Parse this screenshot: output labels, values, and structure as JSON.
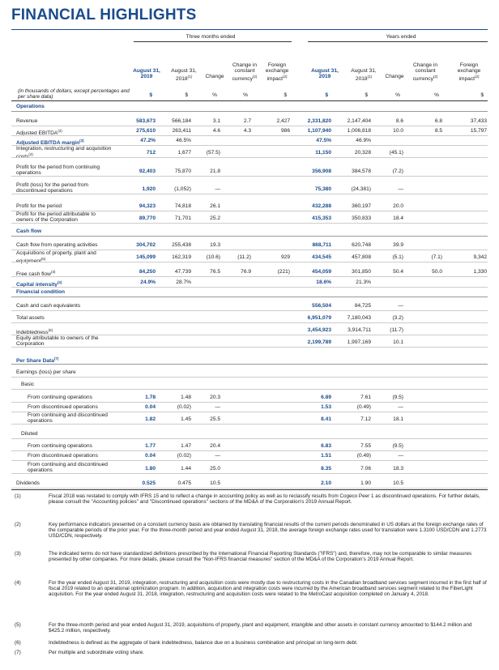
{
  "title": "FINANCIAL HIGHLIGHTS",
  "header": {
    "three_months": "Three months ended",
    "years": "Years ended",
    "col_aug2019": "August 31, 2019",
    "col_aug2018": "August 31, 2018",
    "sup1": "(1)",
    "change": "Change",
    "change_const": "Change in constant currency",
    "sup2": "(2)",
    "fx_impact": "Foreign exchange impact",
    "dollar": "$",
    "pct": "%",
    "units_note": "(in thousands of dollars, except percentages and per share data)"
  },
  "sections": {
    "operations": "Operations",
    "cash_flow": "Cash flow",
    "financial_condition": "Financial condition",
    "per_share": "Per Share Data",
    "per_share_sup": "(7)"
  },
  "rows": [
    {
      "label": "Revenue",
      "v": [
        "583,673",
        "566,184",
        "3.1",
        "2.7",
        "2,427",
        "2,331,820",
        "2,147,404",
        "8.6",
        "6.8",
        "37,433"
      ]
    },
    {
      "label": "Adjusted EBITDA",
      "sup": "(3)",
      "v": [
        "275,610",
        "263,411",
        "4.6",
        "4.3",
        "986",
        "1,107,940",
        "1,006,818",
        "10.0",
        "8.5",
        "15,797"
      ]
    },
    {
      "label": "Adjusted EBITDA margin",
      "sup": "(3)",
      "v": [
        "47.2%",
        "46.5%",
        "",
        "",
        "",
        "47.5%",
        "46.9%",
        "",
        "",
        ""
      ]
    },
    {
      "label": "Integration, restructuring and acquisition costs",
      "sup": "(4)",
      "v": [
        "712",
        "1,677",
        "(57.5)",
        "",
        "",
        "11,150",
        "20,328",
        "(45.1)",
        "",
        ""
      ]
    },
    {
      "label": "Profit for the period from continuing operations",
      "v": [
        "92,403",
        "75,870",
        "21.8",
        "",
        "",
        "356,908",
        "384,578",
        "(7.2)",
        "",
        ""
      ]
    },
    {
      "label": "Profit (loss) for the period from discontinued operations",
      "v": [
        "1,920",
        "(1,052)",
        "—",
        "",
        "",
        "75,380",
        "(24,381)",
        "—",
        "",
        ""
      ]
    },
    {
      "label": "Profit for the period",
      "v": [
        "94,323",
        "74,818",
        "26.1",
        "",
        "",
        "432,288",
        "360,197",
        "20.0",
        "",
        ""
      ]
    },
    {
      "label": "Profit for the period attributable to owners of the Corporation",
      "v": [
        "89,770",
        "71,701",
        "25.2",
        "",
        "",
        "415,353",
        "350,833",
        "18.4",
        "",
        ""
      ]
    },
    {
      "label": "Cash flow from operating activities",
      "v": [
        "304,702",
        "255,438",
        "19.3",
        "",
        "",
        "868,711",
        "620,748",
        "39.9",
        "",
        ""
      ]
    },
    {
      "label": "Acquisitions of property, plant and equipment",
      "sup": "(5)",
      "v": [
        "145,099",
        "162,319",
        "(10.6)",
        "(11.2)",
        "929",
        "434,545",
        "457,808",
        "(5.1)",
        "(7.1)",
        "9,342"
      ]
    },
    {
      "label": "Free cash flow",
      "sup": "(3)",
      "v": [
        "84,250",
        "47,739",
        "76.5",
        "76.9",
        "(221)",
        "454,059",
        "301,850",
        "50.4",
        "50.0",
        "1,330"
      ]
    },
    {
      "label": "Capital intensity",
      "sup": "(3)",
      "v": [
        "24.9%",
        "28.7%",
        "",
        "",
        "",
        "18.6%",
        "21.3%",
        "",
        "",
        ""
      ]
    },
    {
      "label": "Cash and cash equivalents",
      "v": [
        "",
        "",
        "",
        "",
        "",
        "556,504",
        "84,725",
        "—",
        "",
        ""
      ]
    },
    {
      "label": "Total assets",
      "v": [
        "",
        "",
        "",
        "",
        "",
        "6,951,079",
        "7,180,043",
        "(3.2)",
        "",
        ""
      ]
    },
    {
      "label": "Indebtedness",
      "sup": "(6)",
      "v": [
        "",
        "",
        "",
        "",
        "",
        "3,454,923",
        "3,914,711",
        "(11.7)",
        "",
        ""
      ]
    },
    {
      "label": "Equity attributable to owners of the Corporation",
      "v": [
        "",
        "",
        "",
        "",
        "",
        "2,199,789",
        "1,997,169",
        "10.1",
        "",
        ""
      ]
    },
    {
      "label": "Earnings (loss) per share",
      "v": [
        "",
        "",
        "",
        "",
        "",
        "",
        "",
        "",
        "",
        ""
      ]
    },
    {
      "label": "Basic",
      "v": [
        "",
        "",
        "",
        "",
        "",
        "",
        "",
        "",
        "",
        ""
      ]
    },
    {
      "label": "From continuing operations",
      "v": [
        "1.78",
        "1.48",
        "20.3",
        "",
        "",
        "6.89",
        "7.61",
        "(9.5)",
        "",
        ""
      ]
    },
    {
      "label": "From discontinued operations",
      "v": [
        "0.04",
        "(0.02)",
        "—",
        "",
        "",
        "1.53",
        "(0.49)",
        "—",
        "",
        ""
      ]
    },
    {
      "label": "From continuing and discontinued operations",
      "v": [
        "1.82",
        "1.45",
        "25.5",
        "",
        "",
        "8.41",
        "7.12",
        "18.1",
        "",
        ""
      ]
    },
    {
      "label": "Diluted",
      "v": [
        "",
        "",
        "",
        "",
        "",
        "",
        "",
        "",
        "",
        ""
      ]
    },
    {
      "label": "From continuing operations",
      "v": [
        "1.77",
        "1.47",
        "20.4",
        "",
        "",
        "6.83",
        "7.55",
        "(9.5)",
        "",
        ""
      ]
    },
    {
      "label": "From discontinued operations",
      "v": [
        "0.04",
        "(0.02)",
        "—",
        "",
        "",
        "1.51",
        "(0.49)",
        "—",
        "",
        ""
      ]
    },
    {
      "label": "From continuing and discontinued operations",
      "v": [
        "1.80",
        "1.44",
        "25.0",
        "",
        "",
        "8.35",
        "7.06",
        "18.3",
        "",
        ""
      ]
    },
    {
      "label": "Dividends",
      "v": [
        "0.525",
        "0.475",
        "10.5",
        "",
        "",
        "2.10",
        "1.90",
        "10.5",
        "",
        ""
      ]
    }
  ],
  "footnotes": [
    {
      "n": "(1)",
      "t": "Fiscal 2018 was restated to comply with IFRS 15 and to reflect a change in accounting policy as well as to reclassify results from Cogeco Peer 1 as discontinued operations. For further details, please consult the \"Accounting policies\" and \"Discontinued operations\" sections of the MD&A of the Corporation's 2019 Annual Report."
    },
    {
      "n": "(2)",
      "t": "Key performance indicators presented on a constant currency basis are obtained by translating financial results of the current periods denominated in US dollars at the foreign exchange rates of the comparable periods of the prior year. For the three-month period and year ended August 31, 2018, the average foreign exchange rates used for translation were 1.3100 USD/CDN and 1.2773 USD/CDN, respectively."
    },
    {
      "n": "(3)",
      "t": "The indicated terms do not have standardized definitions prescribed by the International Financial Reporting Standards (\"IFRS\") and, therefore, may not be comparable to similar measures presented by other companies. For more details, please consult the \"Non-IFRS financial measures\" section of the MD&A of the Corporation's 2019 Annual Report."
    },
    {
      "n": "(4)",
      "t": "For the year ended August 31, 2019, integration, restructuring and acquisition costs were mostly due to restructuring costs in the Canadian broadband services segment incurred in the first half of fiscal 2019 related to an operational optimization program. In addition, acquisition and integration costs were incurred by the American broadband services segment related to the FiberLight acquisition. For the year ended August 31, 2018, integration, restructuring and acquisition costs were related to the MetroCast acquisition completed on January 4, 2018."
    },
    {
      "n": "(5)",
      "t": "For the three-month period and year ended August 31, 2019, acquisitions of property, plant and equipment, intangible and other assets in constant currency amounted to $144.2 million and $425.2 million, respectively."
    },
    {
      "n": "(6)",
      "t": "Indebtedness is defined as the aggregate of bank indebtedness, balance due on a business combination and principal on long-term debt."
    },
    {
      "n": "(7)",
      "t": "Per multiple and subordinate voting share."
    }
  ]
}
